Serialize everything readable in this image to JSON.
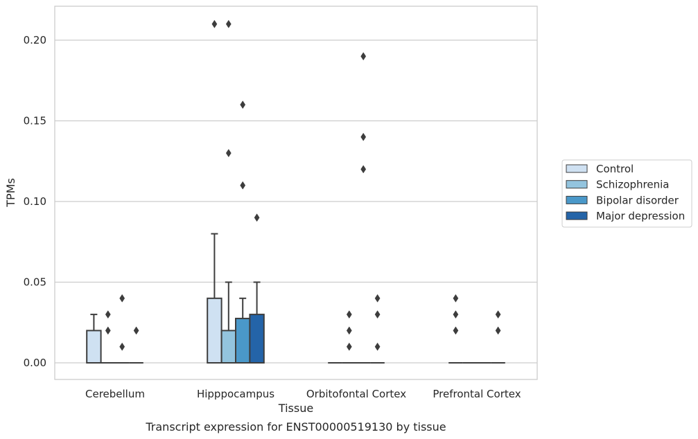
{
  "chart_data": {
    "type": "boxplot",
    "xlabel": "Tissue",
    "ylabel": "TPMs",
    "caption": "Transcript expression for ENST00000519130 by tissue",
    "ylim": [
      -0.01,
      0.22
    ],
    "yticks": [
      0.0,
      0.05,
      0.1,
      0.15,
      0.2
    ],
    "ytick_labels": [
      "0.00",
      "0.05",
      "0.10",
      "0.15",
      "0.20"
    ],
    "grid": true,
    "legend_position": "right",
    "categories": [
      "Cerebellum",
      "Hipppocampus",
      "Orbitofontal Cortex",
      "Prefrontal Cortex"
    ],
    "series": [
      {
        "name": "Control",
        "color": "#cfe1f2",
        "boxes": [
          {
            "q1": 0.0,
            "median": 0.0,
            "q3": 0.02,
            "whisker_low": 0.0,
            "whisker_high": 0.03,
            "outliers": []
          },
          {
            "q1": 0.0,
            "median": 0.0,
            "q3": 0.04,
            "whisker_low": 0.0,
            "whisker_high": 0.08,
            "outliers": [
              0.21
            ]
          },
          {
            "q1": 0.0,
            "median": 0.0,
            "q3": 0.0,
            "whisker_low": 0.0,
            "whisker_high": 0.0,
            "outliers": []
          },
          {
            "q1": 0.0,
            "median": 0.0,
            "q3": 0.0,
            "whisker_low": 0.0,
            "whisker_high": 0.0,
            "outliers": [
              0.02,
              0.03,
              0.04
            ]
          }
        ]
      },
      {
        "name": "Schizophrenia",
        "color": "#93c4de",
        "boxes": [
          {
            "q1": 0.0,
            "median": 0.0,
            "q3": 0.0,
            "whisker_low": 0.0,
            "whisker_high": 0.0,
            "outliers": [
              0.02,
              0.03
            ]
          },
          {
            "q1": 0.0,
            "median": 0.0,
            "q3": 0.02,
            "whisker_low": 0.0,
            "whisker_high": 0.05,
            "outliers": [
              0.13,
              0.21
            ]
          },
          {
            "q1": 0.0,
            "median": 0.0,
            "q3": 0.0,
            "whisker_low": 0.0,
            "whisker_high": 0.0,
            "outliers": [
              0.01,
              0.02,
              0.03
            ]
          },
          {
            "q1": 0.0,
            "median": 0.0,
            "q3": 0.0,
            "whisker_low": 0.0,
            "whisker_high": 0.0,
            "outliers": []
          }
        ]
      },
      {
        "name": "Bipolar disorder",
        "color": "#4a98c9",
        "boxes": [
          {
            "q1": 0.0,
            "median": 0.0,
            "q3": 0.0,
            "whisker_low": 0.0,
            "whisker_high": 0.0,
            "outliers": [
              0.01,
              0.04
            ]
          },
          {
            "q1": 0.0,
            "median": 0.0,
            "q3": 0.0275,
            "whisker_low": 0.0,
            "whisker_high": 0.04,
            "outliers": [
              0.11,
              0.16
            ]
          },
          {
            "q1": 0.0,
            "median": 0.0,
            "q3": 0.0,
            "whisker_low": 0.0,
            "whisker_high": 0.0,
            "outliers": [
              0.12,
              0.14,
              0.19
            ]
          },
          {
            "q1": 0.0,
            "median": 0.0,
            "q3": 0.0,
            "whisker_low": 0.0,
            "whisker_high": 0.0,
            "outliers": []
          }
        ]
      },
      {
        "name": "Major depression",
        "color": "#2464a8",
        "boxes": [
          {
            "q1": 0.0,
            "median": 0.0,
            "q3": 0.0,
            "whisker_low": 0.0,
            "whisker_high": 0.0,
            "outliers": [
              0.02
            ]
          },
          {
            "q1": 0.0,
            "median": 0.0,
            "q3": 0.03,
            "whisker_low": 0.0,
            "whisker_high": 0.05,
            "outliers": [
              0.09
            ]
          },
          {
            "q1": 0.0,
            "median": 0.0,
            "q3": 0.0,
            "whisker_low": 0.0,
            "whisker_high": 0.0,
            "outliers": [
              0.01,
              0.03,
              0.04
            ]
          },
          {
            "q1": 0.0,
            "median": 0.0,
            "q3": 0.0,
            "whisker_low": 0.0,
            "whisker_high": 0.0,
            "outliers": [
              0.02,
              0.03
            ]
          }
        ]
      }
    ]
  }
}
